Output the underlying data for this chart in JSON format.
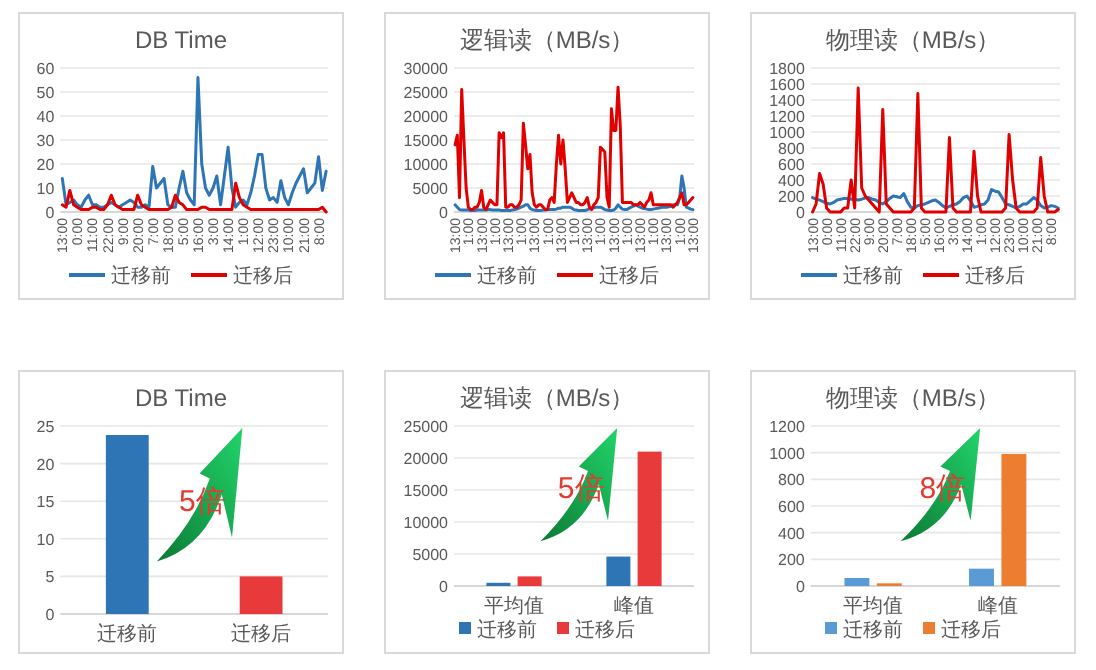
{
  "chart_data": [
    {
      "type": "line",
      "title": "DB Time",
      "categories": [
        "13:00",
        null,
        null,
        null,
        "0:00",
        null,
        null,
        null,
        "11:00",
        null,
        null,
        null,
        "22:00",
        null,
        null,
        null,
        "9:00",
        null,
        null,
        null,
        "20:00",
        null,
        null,
        null,
        "7:00",
        null,
        null,
        null,
        "18:00",
        null,
        null,
        null,
        "5:00",
        null,
        null,
        null,
        "16:00",
        null,
        null,
        null,
        "3:00",
        null,
        null,
        null,
        "14:00",
        null,
        null,
        null,
        "1:00",
        null,
        null,
        null,
        "12:00",
        null,
        null,
        null,
        "23:00",
        null,
        null,
        null,
        "10:00",
        null,
        null,
        null,
        "21:00",
        null,
        null,
        null,
        "8:00",
        null,
        null
      ],
      "ylim": [
        0,
        60
      ],
      "yticks": [
        0,
        10,
        20,
        30,
        40,
        50,
        60
      ],
      "grid": "y",
      "legend": "bottom",
      "series": [
        {
          "name": "迁移前",
          "color": "#2e75b6",
          "values": [
            14,
            3,
            4,
            5,
            3,
            2,
            5,
            7,
            3,
            3,
            2,
            2,
            3,
            4,
            3,
            2,
            3,
            4,
            5,
            4,
            2,
            2,
            3,
            2,
            19,
            10,
            12,
            14,
            3,
            2,
            2,
            10,
            17,
            8,
            5,
            3,
            56,
            20,
            10,
            7,
            10,
            15,
            3,
            15,
            27,
            10,
            2,
            4,
            5,
            3,
            8,
            15,
            24,
            24,
            10,
            5,
            6,
            4,
            13,
            6,
            3,
            8,
            12,
            15,
            18,
            8,
            10,
            12,
            23,
            9,
            17
          ]
        },
        {
          "name": "迁移后",
          "color": "#e00000",
          "values": [
            3,
            2,
            9,
            3,
            2,
            1,
            1,
            1,
            2,
            2,
            1,
            1,
            3,
            7,
            3,
            2,
            1,
            1,
            1,
            1,
            7,
            3,
            2,
            1,
            1,
            1,
            1,
            1,
            1,
            2,
            7,
            4,
            3,
            1,
            1,
            1,
            1,
            2,
            2,
            1,
            1,
            1,
            1,
            1,
            1,
            1,
            12,
            6,
            3,
            2,
            1,
            1,
            1,
            1,
            1,
            1,
            1,
            1,
            1,
            1,
            1,
            1,
            1,
            1,
            1,
            1,
            1,
            1,
            1,
            2,
            0
          ]
        }
      ]
    },
    {
      "type": "line",
      "title": "逻辑读（MB/s）",
      "categories": [
        "13:00",
        null,
        null,
        null,
        null,
        null,
        "1:00",
        null,
        null,
        null,
        null,
        null,
        "13:00",
        null,
        null,
        null,
        null,
        null,
        "1:00",
        null,
        null,
        null,
        null,
        null,
        "13:00",
        null,
        null,
        null,
        null,
        null,
        "1:00",
        null,
        null,
        null,
        null,
        null,
        "13:00",
        null,
        null,
        null,
        null,
        null,
        "1:00",
        null,
        null,
        null,
        null,
        null,
        "13:00",
        null,
        null,
        null,
        null,
        null,
        "1:00",
        null,
        null,
        null,
        null,
        null,
        "13:00",
        null,
        null,
        null,
        null,
        null,
        "1:00",
        null,
        null,
        null,
        null,
        null,
        "13:00",
        null,
        null,
        null,
        null,
        null,
        "1:00",
        null,
        null,
        null,
        null,
        null,
        "13:00",
        null,
        null,
        null,
        null,
        null,
        "1:00",
        null,
        null,
        null,
        null,
        null,
        "13:00",
        null,
        null,
        null,
        null,
        null,
        "1:00",
        null,
        null,
        null,
        null,
        null,
        "13:00"
      ],
      "ylim": [
        0,
        30000
      ],
      "yticks": [
        0,
        5000,
        10000,
        15000,
        20000,
        25000,
        30000
      ],
      "grid": "y",
      "legend": "bottom",
      "series": [
        {
          "name": "迁移前",
          "color": "#2e75b6",
          "values": [
            1500,
            1000,
            500,
            400,
            400,
            400,
            400,
            300,
            300,
            300,
            400,
            400,
            400,
            400,
            400,
            500,
            500,
            400,
            400,
            400,
            400,
            300,
            300,
            300,
            300,
            300,
            400,
            500,
            600,
            800,
            1000,
            1200,
            1500,
            1500,
            800,
            500,
            400,
            300,
            300,
            300,
            400,
            400,
            500,
            500,
            500,
            500,
            600,
            800,
            800,
            1000,
            1000,
            1000,
            1000,
            800,
            500,
            400,
            300,
            300,
            300,
            300,
            500,
            600,
            800,
            900,
            1000,
            1000,
            1000,
            800,
            500,
            400,
            300,
            300,
            400,
            800,
            1500,
            1000,
            600,
            500,
            500,
            800,
            1000,
            1200,
            1500,
            1200,
            1000,
            800,
            700,
            600,
            500,
            500,
            600,
            700,
            800,
            900,
            1000,
            1000,
            1000,
            1100,
            1200,
            1500,
            1500,
            1500,
            3000,
            7500,
            5000,
            1000,
            800,
            600,
            500
          ]
        },
        {
          "name": "迁移后",
          "color": "#e00000",
          "values": [
            14000,
            16000,
            3000,
            25500,
            15000,
            5000,
            1000,
            500,
            500,
            1000,
            1000,
            2000,
            4500,
            1000,
            500,
            1500,
            2500,
            2000,
            1500,
            1500,
            16500,
            15500,
            16500,
            1000,
            1000,
            1500,
            1500,
            1000,
            1000,
            1500,
            2500,
            18500,
            14000,
            9000,
            12000,
            4000,
            1500,
            1000,
            1500,
            1500,
            1000,
            500,
            500,
            2500,
            3000,
            2000,
            10000,
            16000,
            10000,
            15000,
            9000,
            2000,
            3000,
            4000,
            3000,
            2000,
            2000,
            1500,
            1500,
            2000,
            3000,
            1000,
            500,
            1500,
            2000,
            3000,
            13500,
            13000,
            12500,
            3000,
            1000,
            21500,
            17000,
            17000,
            26000,
            18000,
            2000,
            2000,
            2000,
            2000,
            2000,
            1500,
            1500,
            1500,
            2000,
            1500,
            1000,
            2000,
            2500,
            4000,
            1500,
            1500,
            1500,
            1500,
            1500,
            1500,
            1500,
            1500,
            1500,
            1000,
            1500,
            2000,
            3000,
            4000,
            1500,
            1500,
            2000,
            2500,
            3000
          ]
        }
      ]
    },
    {
      "type": "line",
      "title": "物理读（MB/s）",
      "categories": [
        "13:00",
        null,
        null,
        null,
        "0:00",
        null,
        null,
        null,
        "11:00",
        null,
        null,
        null,
        "22:00",
        null,
        null,
        null,
        "9:00",
        null,
        null,
        null,
        "20:00",
        null,
        null,
        null,
        "7:00",
        null,
        null,
        null,
        "18:00",
        null,
        null,
        null,
        "5:00",
        null,
        null,
        null,
        "16:00",
        null,
        null,
        null,
        "3:00",
        null,
        null,
        null,
        "14:00",
        null,
        null,
        null,
        "1:00",
        null,
        null,
        null,
        "12:00",
        null,
        null,
        null,
        "23:00",
        null,
        null,
        null,
        "10:00",
        null,
        null,
        null,
        "21:00",
        null,
        null,
        null,
        "8:00",
        null,
        null
      ],
      "ylim": [
        0,
        1800
      ],
      "yticks": [
        0,
        200,
        400,
        600,
        800,
        1000,
        1200,
        1400,
        1600,
        1800
      ],
      "grid": "y",
      "legend": "bottom",
      "series": [
        {
          "name": "迁移前",
          "color": "#2e75b6",
          "values": [
            180,
            160,
            150,
            130,
            110,
            100,
            120,
            150,
            160,
            170,
            170,
            160,
            160,
            150,
            160,
            175,
            180,
            160,
            150,
            120,
            100,
            130,
            170,
            200,
            190,
            180,
            230,
            130,
            60,
            50,
            80,
            90,
            100,
            120,
            140,
            150,
            120,
            80,
            50,
            70,
            90,
            100,
            130,
            180,
            200,
            140,
            60,
            70,
            90,
            100,
            150,
            280,
            260,
            250,
            180,
            100,
            90,
            70,
            50,
            70,
            100,
            100,
            140,
            180,
            150,
            80,
            50,
            60,
            80,
            70,
            50
          ]
        },
        {
          "name": "迁移后",
          "color": "#e00000",
          "values": [
            0,
            100,
            480,
            350,
            50,
            0,
            0,
            0,
            0,
            50,
            50,
            400,
            50,
            1550,
            300,
            200,
            150,
            100,
            50,
            0,
            1280,
            100,
            50,
            0,
            0,
            0,
            0,
            0,
            0,
            50,
            1480,
            50,
            0,
            0,
            0,
            0,
            0,
            0,
            0,
            930,
            50,
            0,
            0,
            0,
            0,
            0,
            760,
            200,
            0,
            0,
            0,
            0,
            0,
            0,
            0,
            50,
            970,
            400,
            50,
            0,
            0,
            0,
            0,
            0,
            50,
            680,
            200,
            0,
            0,
            0,
            30
          ]
        }
      ]
    },
    {
      "type": "bar",
      "title": "DB Time",
      "categories": [
        "迁移前",
        "迁移后"
      ],
      "values": [
        23.8,
        5
      ],
      "colors": [
        "#2e75b6",
        "#e83a3a"
      ],
      "ylim": [
        0,
        25
      ],
      "yticks": [
        0,
        5,
        10,
        15,
        20,
        25
      ],
      "grid": "y",
      "annotations": [
        "5倍"
      ]
    },
    {
      "type": "bar",
      "title": "逻辑读（MB/s）",
      "categories": [
        "平均值",
        "峰值"
      ],
      "ylim": [
        0,
        25000
      ],
      "yticks": [
        0,
        5000,
        10000,
        15000,
        20000,
        25000
      ],
      "grid": "y",
      "legend": "bottom",
      "annotations": [
        "5倍"
      ],
      "series": [
        {
          "name": "迁移前",
          "color": "#2e75b6",
          "values": [
            500,
            4600
          ]
        },
        {
          "name": "迁移后",
          "color": "#e83a3a",
          "values": [
            1500,
            21000
          ]
        }
      ]
    },
    {
      "type": "bar",
      "title": "物理读（MB/s）",
      "categories": [
        "平均值",
        "峰值"
      ],
      "ylim": [
        0,
        1200
      ],
      "yticks": [
        0,
        200,
        400,
        600,
        800,
        1000,
        1200
      ],
      "grid": "y",
      "legend": "bottom",
      "annotations": [
        "8倍"
      ],
      "series": [
        {
          "name": "迁移前",
          "color": "#5b9bd5",
          "values": [
            60,
            130
          ]
        },
        {
          "name": "迁移后",
          "color": "#ed7d31",
          "values": [
            20,
            990
          ]
        }
      ]
    }
  ]
}
